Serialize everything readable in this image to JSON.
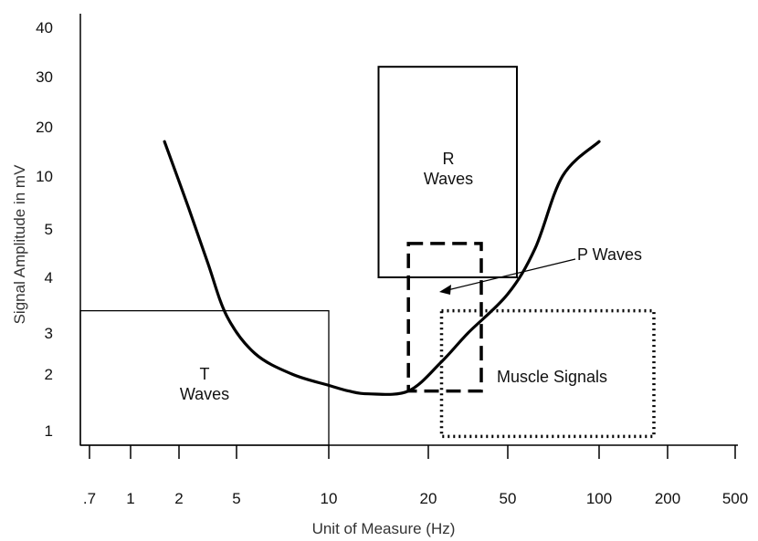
{
  "chart_data": {
    "type": "line",
    "title": "",
    "xlabel": "Unit of Measure (Hz)",
    "ylabel": "Signal Amplitude in mV",
    "x_scale": "categorical-log",
    "y_scale": "categorical",
    "x_ticks": [
      ".7",
      "1",
      "2",
      "5",
      "10",
      "20",
      "50",
      "100",
      "200",
      "500"
    ],
    "y_ticks": [
      "1",
      "2",
      "3",
      "4",
      "5",
      "10",
      "20",
      "30",
      "40"
    ],
    "grid": false,
    "series": [
      {
        "points": [
          {
            "x": 1.7,
            "y": 17
          },
          {
            "x": 2.5,
            "y": 7
          },
          {
            "x": 3.5,
            "y": 4.3
          },
          {
            "x": 4.5,
            "y": 3.3
          },
          {
            "x": 6,
            "y": 2.5
          },
          {
            "x": 8,
            "y": 2.0
          },
          {
            "x": 10,
            "y": 1.8
          },
          {
            "x": 12,
            "y": 1.7
          },
          {
            "x": 14,
            "y": 1.65
          },
          {
            "x": 18,
            "y": 1.7
          },
          {
            "x": 25,
            "y": 2.3
          },
          {
            "x": 35,
            "y": 3.0
          },
          {
            "x": 50,
            "y": 3.7
          },
          {
            "x": 65,
            "y": 4.6
          },
          {
            "x": 80,
            "y": 10
          },
          {
            "x": 100,
            "y": 17
          }
        ]
      }
    ],
    "regions": [
      {
        "label_lines": [
          "T",
          "Waves"
        ],
        "x_range": [
          0.6,
          10
        ],
        "y_range": [
          0.5,
          3.4
        ],
        "border": "solid-thin"
      },
      {
        "label_lines": [
          "R",
          "Waves"
        ],
        "x_range": [
          15,
          55
        ],
        "y_range": [
          4,
          32
        ],
        "border": "solid"
      },
      {
        "label_lines": [
          "P Waves"
        ],
        "x_range": [
          18,
          40
        ],
        "y_range": [
          1.7,
          4.7
        ],
        "border": "dashed"
      },
      {
        "label_lines": [
          "Muscle Signals"
        ],
        "x_range": [
          25,
          180
        ],
        "y_range": [
          0.8,
          3.4
        ],
        "border": "dotted"
      }
    ]
  }
}
